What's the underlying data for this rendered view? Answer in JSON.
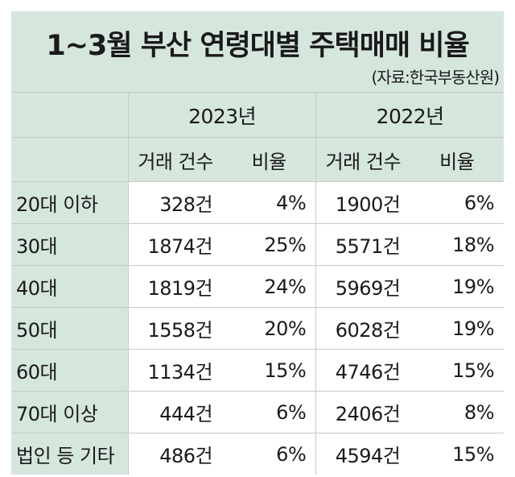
{
  "title": "1~3월 부산 연령대별 주택매매 비율",
  "source": "(자료:한국부동산원)",
  "chart_data": {
    "type": "table",
    "title": "1~3월 부산 연령대별 주택매매 비율",
    "source": "(자료:한국부동산원)",
    "years": [
      "2023년",
      "2022년"
    ],
    "columns": [
      "거래 건수",
      "비율",
      "거래 건수",
      "비율"
    ],
    "rows": [
      {
        "label": "20대 이하",
        "c2023": "328건",
        "r2023": "4%",
        "c2022": "1900건",
        "r2022": "6%"
      },
      {
        "label": "30대",
        "c2023": "1874건",
        "r2023": "25%",
        "c2022": "5571건",
        "r2022": "18%"
      },
      {
        "label": "40대",
        "c2023": "1819건",
        "r2023": "24%",
        "c2022": "5969건",
        "r2022": "19%"
      },
      {
        "label": "50대",
        "c2023": "1558건",
        "r2023": "20%",
        "c2022": "6028건",
        "r2022": "19%"
      },
      {
        "label": "60대",
        "c2023": "1134건",
        "r2023": "15%",
        "c2022": "4746건",
        "r2022": "15%"
      },
      {
        "label": "70대 이상",
        "c2023": "444건",
        "r2023": "6%",
        "c2022": "2406건",
        "r2022": "8%"
      },
      {
        "label": "법인 등 기타",
        "c2023": "486건",
        "r2023": "6%",
        "c2022": "4594건",
        "r2022": "15%"
      }
    ]
  },
  "colors": {
    "header_bg": "#d5e6dd",
    "grid": "#c8c8c8",
    "text": "#1a1a1a"
  }
}
